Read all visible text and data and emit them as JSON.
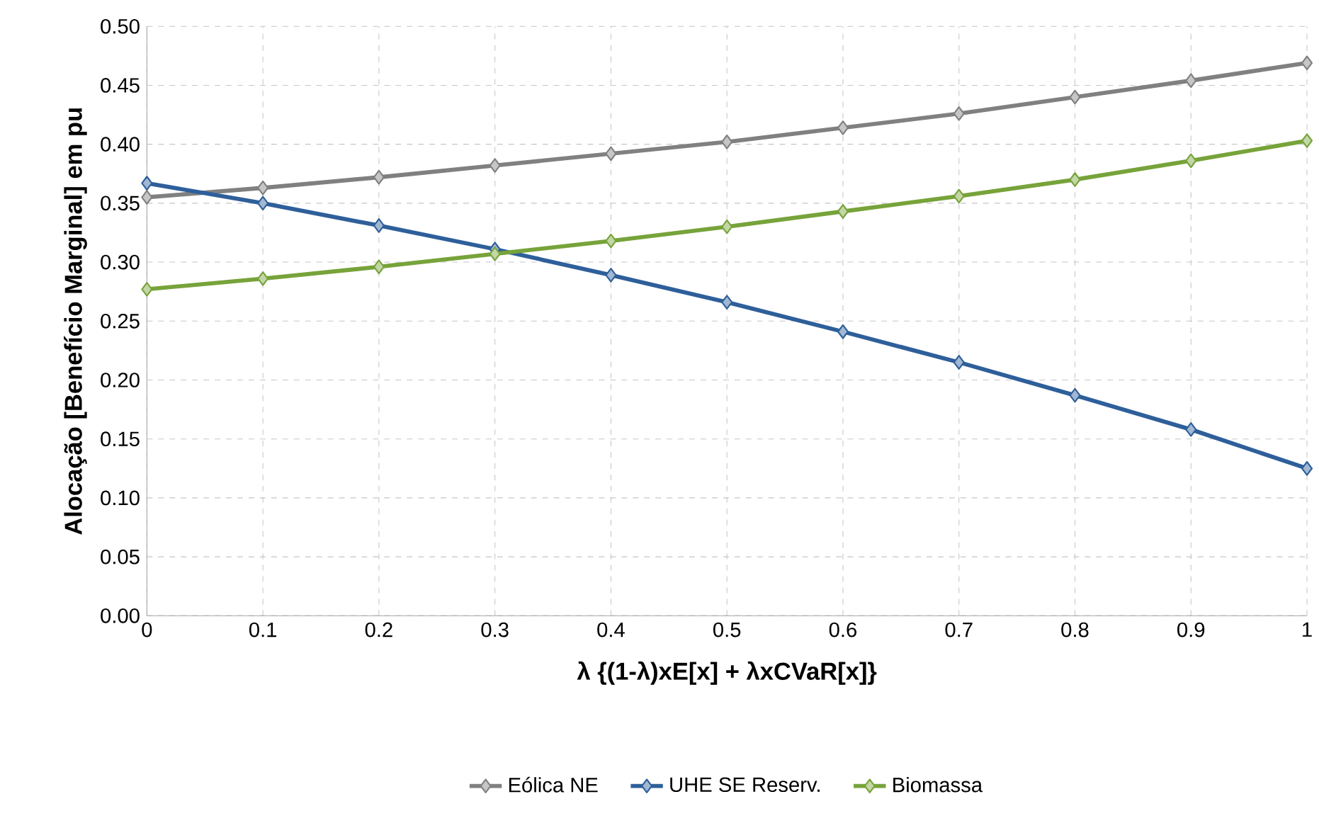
{
  "chart_data": {
    "type": "line",
    "xlabel": "λ {(1-λ)xE[x] + λxCVaR[x]}",
    "ylabel": "Alocação [Benefício Marginal] em pu",
    "x": [
      0,
      0.1,
      0.2,
      0.3,
      0.4,
      0.5,
      0.6,
      0.7,
      0.8,
      0.9,
      1
    ],
    "series": [
      {
        "name": "Eólica NE",
        "color": "#808080",
        "values": [
          0.355,
          0.363,
          0.372,
          0.382,
          0.392,
          0.402,
          0.414,
          0.426,
          0.44,
          0.454,
          0.469
        ]
      },
      {
        "name": "UHE SE Reserv.",
        "color": "#2e5f9a",
        "values": [
          0.367,
          0.35,
          0.331,
          0.311,
          0.289,
          0.266,
          0.241,
          0.215,
          0.187,
          0.158,
          0.125
        ]
      },
      {
        "name": "Biomassa",
        "color": "#77a33a",
        "values": [
          0.277,
          0.286,
          0.296,
          0.307,
          0.318,
          0.33,
          0.343,
          0.356,
          0.37,
          0.386,
          0.403
        ]
      }
    ],
    "xlim": [
      0,
      1
    ],
    "ylim": [
      0,
      0.5
    ],
    "xticks": [
      0,
      0.1,
      0.2,
      0.3,
      0.4,
      0.5,
      0.6,
      0.7,
      0.8,
      0.9,
      1
    ],
    "yticks": [
      {
        "value": 0,
        "label": "0.00"
      },
      {
        "value": 0.05,
        "label": "0.05"
      },
      {
        "value": 0.1,
        "label": "0.10"
      },
      {
        "value": 0.15,
        "label": "0.15"
      },
      {
        "value": 0.2,
        "label": "0.20"
      },
      {
        "value": 0.25,
        "label": "0.25"
      },
      {
        "value": 0.3,
        "label": "0.30"
      },
      {
        "value": 0.35,
        "label": "0.35"
      },
      {
        "value": 0.4,
        "label": "0.40"
      },
      {
        "value": 0.45,
        "label": "0.45"
      },
      {
        "value": 0.5,
        "label": "0.50"
      }
    ],
    "grid": true,
    "legend": "bottom",
    "marker": "diamond",
    "line_style": "solid"
  }
}
